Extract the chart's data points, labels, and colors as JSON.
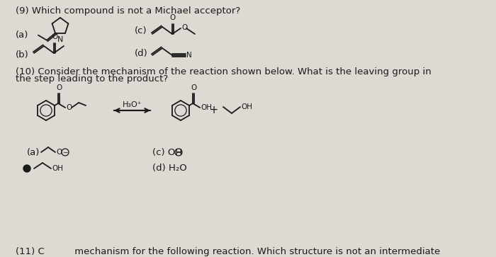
{
  "bg_color": "#ddd9d3",
  "text_color": "#1a1a1a",
  "title_q9": "(9) Which compound is not a Michael acceptor?",
  "title_q10_line1": "(10) Consider the mechanism of the reaction shown below. What is the leaving group in",
  "title_q10_line2": "the step leading to the product?",
  "title_q11": "(11) C          mechanism for the following reaction. Which structure is not an intermediate",
  "font_size": 9.5
}
